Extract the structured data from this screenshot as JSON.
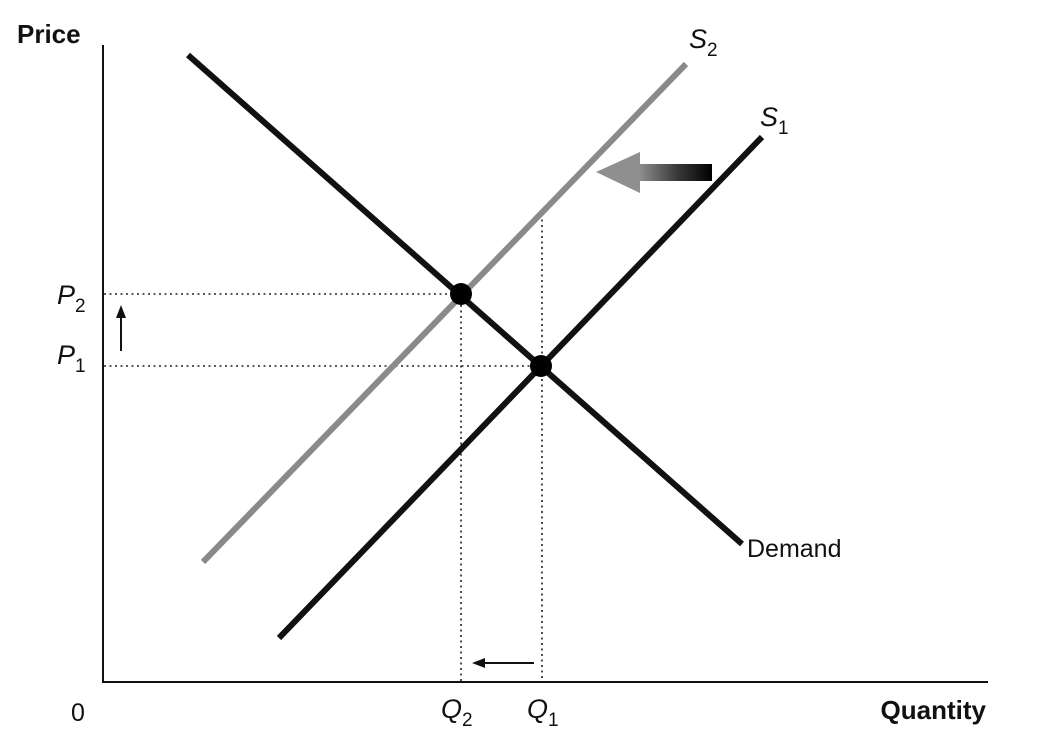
{
  "diagram": {
    "y_axis_title": "Price",
    "x_axis_title": "Quantity",
    "origin_label": "0",
    "price_labels": [
      {
        "base": "P",
        "sub": "2"
      },
      {
        "base": "P",
        "sub": "1"
      }
    ],
    "quantity_labels": [
      {
        "base": "Q",
        "sub": "2"
      },
      {
        "base": "Q",
        "sub": "1"
      }
    ],
    "curves": {
      "supply_original": {
        "base": "S",
        "sub": "1",
        "color": "#111111"
      },
      "supply_new": {
        "base": "S",
        "sub": "2",
        "color": "#8a8a8a"
      },
      "demand": {
        "label": "Demand",
        "color": "#111111"
      }
    },
    "equilibrium_points": [
      "initial",
      "new"
    ],
    "shift_direction": "left"
  }
}
